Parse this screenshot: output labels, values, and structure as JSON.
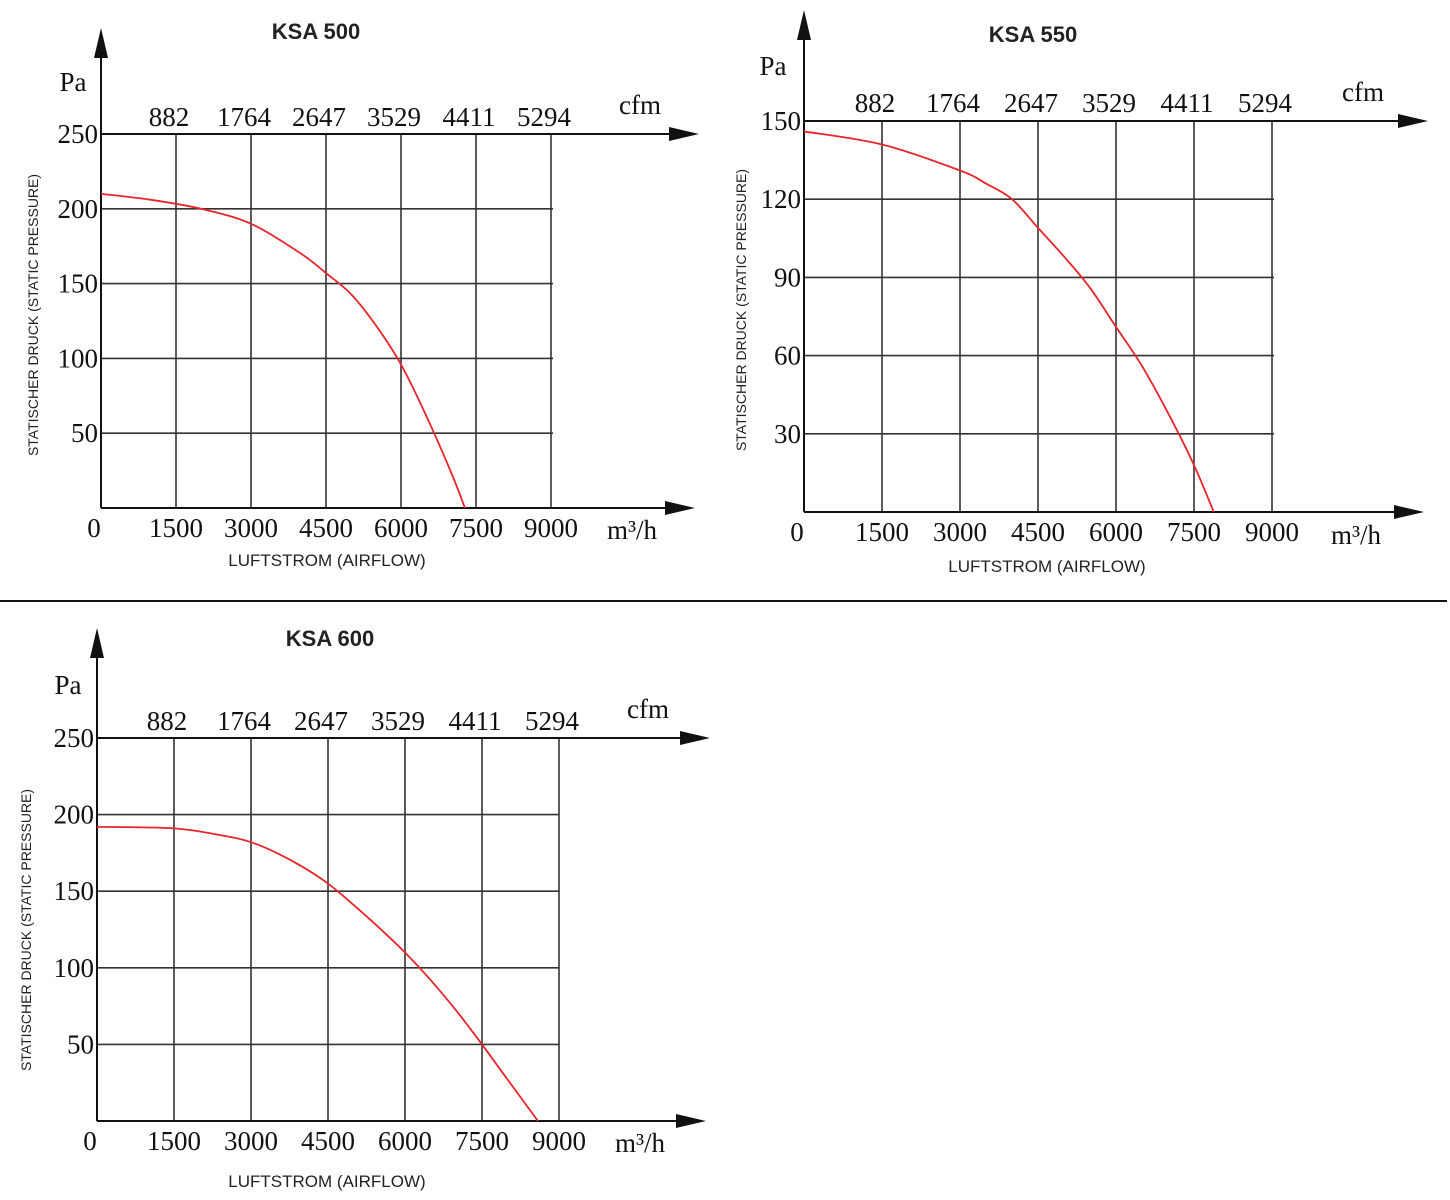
{
  "chart_data": [
    {
      "type": "line",
      "title": "KSA 500",
      "xlabel": "LUFTSTROM (AIRFLOW)",
      "ylabel": "STATISCHER DRUCK (STATIC PRESSURE)",
      "x_unit": "m³/h",
      "y_unit": "Pa",
      "secondary_x_unit": "cfm",
      "origin_label": "0",
      "xlim": [
        0,
        9000
      ],
      "ylim": [
        0,
        250
      ],
      "x_ticks": [
        "1500",
        "3000",
        "4500",
        "6000",
        "7500",
        "9000"
      ],
      "y_ticks": [
        "50",
        "100",
        "150",
        "200",
        "250"
      ],
      "cfm_ticks": [
        "882",
        "1764",
        "2647",
        "3529",
        "4411",
        "5294"
      ],
      "grid": true,
      "line_color": "#e8252b",
      "x": [
        0,
        1000,
        2000,
        3000,
        4000,
        4500,
        5000,
        5500,
        6000,
        6500,
        7000,
        7280
      ],
      "y": [
        210,
        206,
        200,
        190,
        170,
        157,
        143,
        122,
        96,
        62,
        24,
        0
      ]
    },
    {
      "type": "line",
      "title": "KSA 550",
      "xlabel": "LUFTSTROM (AIRFLOW)",
      "ylabel": "STATISCHER DRUCK (STATIC PRESSURE)",
      "x_unit": "m³/h",
      "y_unit": "Pa",
      "secondary_x_unit": "cfm",
      "origin_label": "0",
      "xlim": [
        0,
        9000
      ],
      "ylim": [
        0,
        150
      ],
      "x_ticks": [
        "1500",
        "3000",
        "4500",
        "6000",
        "7500",
        "9000"
      ],
      "y_ticks": [
        "30",
        "60",
        "90",
        "120",
        "150"
      ],
      "cfm_ticks": [
        "882",
        "1764",
        "2647",
        "3529",
        "4411",
        "5294"
      ],
      "grid": true,
      "line_color": "#e8252b",
      "x": [
        0,
        1500,
        3000,
        3500,
        4000,
        4500,
        5000,
        5500,
        6000,
        6500,
        7000,
        7500,
        7880
      ],
      "y": [
        146,
        141,
        131,
        126,
        120,
        109,
        98,
        86,
        71,
        56,
        38,
        18,
        0
      ]
    },
    {
      "type": "line",
      "title": "KSA 600",
      "xlabel": "LUFTSTROM (AIRFLOW)",
      "ylabel": "STATISCHER DRUCK (STATIC PRESSURE)",
      "x_unit": "m³/h",
      "y_unit": "Pa",
      "secondary_x_unit": "cfm",
      "origin_label": "0",
      "xlim": [
        0,
        9000
      ],
      "ylim": [
        0,
        250
      ],
      "x_ticks": [
        "1500",
        "3000",
        "4500",
        "6000",
        "7500",
        "9000"
      ],
      "y_ticks": [
        "50",
        "100",
        "150",
        "200",
        "250"
      ],
      "cfm_ticks": [
        "882",
        "1764",
        "2647",
        "3529",
        "4411",
        "5294"
      ],
      "grid": true,
      "line_color": "#e8252b",
      "x": [
        0,
        1500,
        2500,
        3000,
        3500,
        4000,
        4500,
        5000,
        5500,
        6000,
        6500,
        7000,
        7500,
        8000,
        8590
      ],
      "y": [
        192,
        191,
        186,
        182,
        175,
        166,
        155,
        141,
        126,
        110,
        92,
        72,
        50,
        27,
        0
      ]
    }
  ]
}
